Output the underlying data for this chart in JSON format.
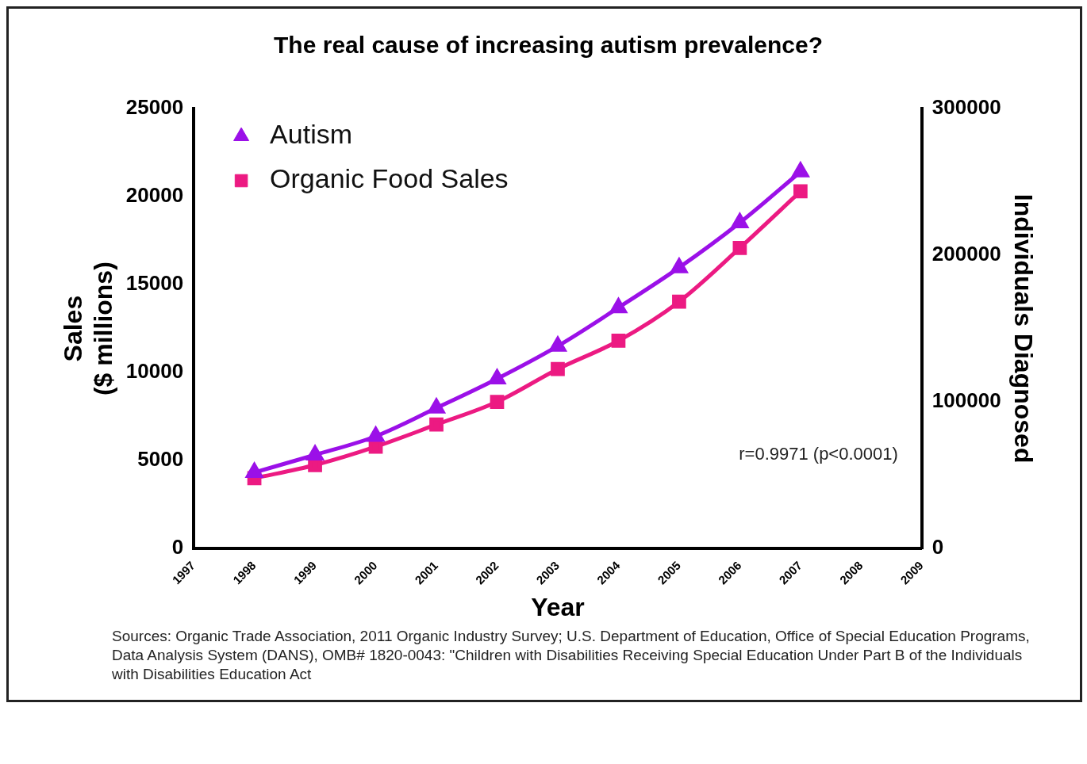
{
  "chart_data": {
    "type": "line",
    "title": "The real cause of increasing autism prevalence?",
    "xlabel": "Year",
    "ylabel": "Sales\n($ millions)",
    "y2label": "Individuals Diagnosed",
    "x": [
      1998,
      1999,
      2000,
      2001,
      2002,
      2003,
      2004,
      2005,
      2006,
      2007
    ],
    "series": [
      {
        "name": "Autism",
        "color": "#9b10e8",
        "marker": "triangle",
        "axis": "y2",
        "values": [
          52000,
          63900,
          76600,
          95900,
          115800,
          138100,
          164300,
          191600,
          222200,
          256900
        ]
      },
      {
        "name": "Organic Food Sales",
        "color": "#ec1a82",
        "marker": "square",
        "values": [
          4000,
          4750,
          5790,
          7050,
          8340,
          10200,
          11810,
          14030,
          17080,
          20300
        ]
      }
    ],
    "xlim": [
      1997,
      2009
    ],
    "xticks": [
      1997,
      1998,
      1999,
      2000,
      2001,
      2002,
      2003,
      2004,
      2005,
      2006,
      2007,
      2008,
      2009
    ],
    "ylim": [
      0,
      25000
    ],
    "yticks": [
      0,
      5000,
      10000,
      15000,
      20000,
      25000
    ],
    "y2lim": [
      0,
      300000
    ],
    "y2ticks": [
      0,
      100000,
      200000,
      300000
    ],
    "grid": false,
    "legend": "top left",
    "line_style": "solid",
    "annotations": [
      "r=0.9971 (p<0.0001)",
      "Sources: Organic Trade Association,  2011 Organic Industry Survey; U.S. Department of Education, Office of Special Education Programs, Data Analysis System (DANS), OMB# 1820-0043: \"Children with Disabilities Receiving Special Education Under Part B of the Individuals\nwith Disabilities Education Act"
    ]
  }
}
